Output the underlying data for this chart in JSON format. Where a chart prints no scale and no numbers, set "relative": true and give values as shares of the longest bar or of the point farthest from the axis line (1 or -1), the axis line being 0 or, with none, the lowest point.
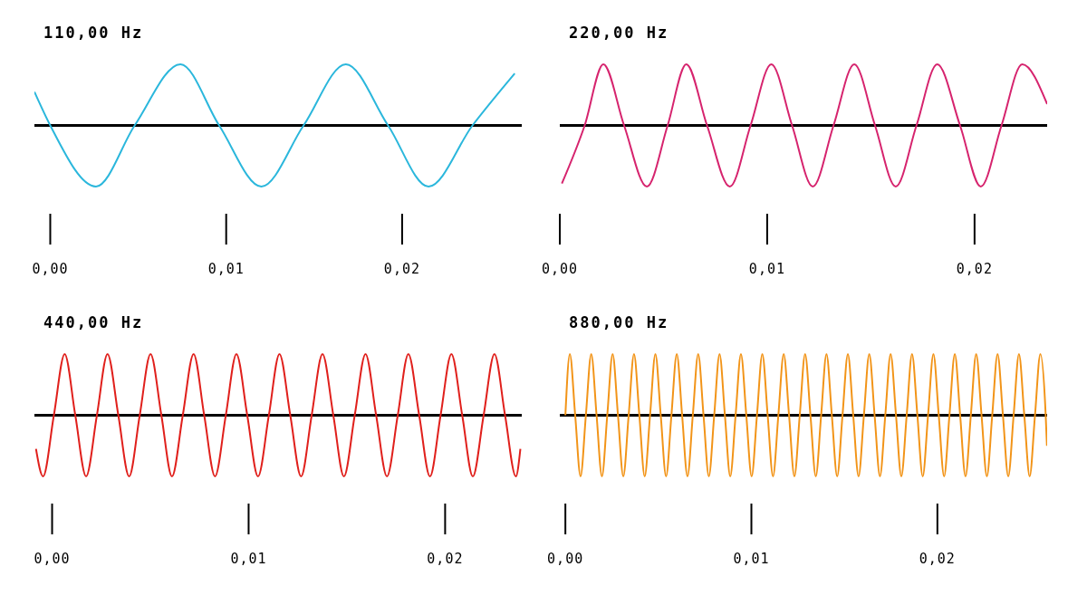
{
  "chart_data": [
    {
      "type": "line",
      "title": "110,00 Hz",
      "relative": true,
      "color": "#2bb7dc",
      "xlim": [
        -0.0009,
        0.0268
      ],
      "xticks": [
        {
          "value": 0,
          "label": "0,00"
        },
        {
          "value": 0.01,
          "label": "0,01"
        },
        {
          "value": 0.02,
          "label": "0,02"
        }
      ],
      "x": [
        -0.0009,
        0,
        0.0026,
        0.0048,
        0.0074,
        0.0096,
        0.012,
        0.0144,
        0.0168,
        0.0192,
        0.0215,
        0.024,
        0.0264
      ],
      "values": [
        0.55,
        0,
        -1,
        0,
        1,
        0,
        -1,
        0,
        1,
        0,
        -1,
        0,
        0.85
      ]
    },
    {
      "type": "line",
      "title": "220,00 Hz",
      "relative": true,
      "color": "#d6246e",
      "xlim": [
        0,
        0.0235
      ],
      "xticks": [
        {
          "value": 0,
          "label": "0,00"
        },
        {
          "value": 0.01,
          "label": "0,01"
        },
        {
          "value": 0.02,
          "label": "0,02"
        }
      ],
      "x": [
        0.0001,
        0.0012,
        0.0021,
        0.0031,
        0.0042,
        0.0052,
        0.0061,
        0.0071,
        0.0082,
        0.0092,
        0.0102,
        0.0112,
        0.0122,
        0.0132,
        0.0142,
        0.0152,
        0.0162,
        0.0172,
        0.0182,
        0.0193,
        0.0203,
        0.0213,
        0.0223,
        0.0235
      ],
      "values": [
        -0.95,
        0,
        1,
        0,
        -1,
        0,
        1,
        0,
        -1,
        0,
        1,
        0,
        -1,
        0,
        1,
        0,
        -1,
        0,
        1,
        0,
        -1,
        0,
        1,
        0.35
      ]
    },
    {
      "type": "line",
      "title": "440,00 Hz",
      "relative": true,
      "color": "#e0201c",
      "xlim": [
        -0.0009,
        0.0239
      ],
      "xticks": [
        {
          "value": 0,
          "label": "0,00"
        },
        {
          "value": 0.01,
          "label": "0,01"
        },
        {
          "value": 0.02,
          "label": "0,02"
        }
      ],
      "x": [
        -0.00082,
        -0.00046,
        9e-05,
        0.00064,
        0.00118,
        0.00173,
        0.00228,
        0.00282,
        0.00337,
        0.00392,
        0.00446,
        0.00501,
        0.00556,
        0.0061,
        0.00665,
        0.0072,
        0.00774,
        0.00829,
        0.00884,
        0.00938,
        0.00993,
        0.01048,
        0.01103,
        0.01157,
        0.01212,
        0.01267,
        0.01321,
        0.01376,
        0.01431,
        0.01485,
        0.0154,
        0.01595,
        0.01649,
        0.01704,
        0.01759,
        0.01813,
        0.01868,
        0.01923,
        0.01977,
        0.02032,
        0.02087,
        0.02141,
        0.02196,
        0.02251,
        0.02305,
        0.0236,
        0.02383
      ],
      "values": [
        -0.55,
        -1,
        0,
        1,
        0,
        -1,
        0,
        1,
        0,
        -1,
        0,
        1,
        0,
        -1,
        0,
        1,
        0,
        -1,
        0,
        1,
        0,
        -1,
        0,
        1,
        0,
        -1,
        0,
        1,
        0,
        -1,
        0,
        1,
        0,
        -1,
        0,
        1,
        0,
        -1,
        0,
        1,
        0,
        -1,
        0,
        1,
        0,
        -1,
        -0.55
      ]
    },
    {
      "type": "line",
      "title": "880,00 Hz",
      "relative": true,
      "color": "#f29418",
      "xlim": [
        -0.0003,
        0.0259
      ],
      "xticks": [
        {
          "value": 0,
          "label": "0,00"
        },
        {
          "value": 0.01,
          "label": "0,01"
        },
        {
          "value": 0.02,
          "label": "0,02"
        }
      ],
      "x": [
        0,
        0.00024,
        0.000527,
        0.000815,
        0.001102,
        0.00139,
        0.001677,
        0.001965,
        0.002252,
        0.00254,
        0.002827,
        0.003114,
        0.003402,
        0.003689,
        0.003977,
        0.004264,
        0.004552,
        0.004839,
        0.005126,
        0.005414,
        0.005701,
        0.005989,
        0.006276,
        0.006564,
        0.006851,
        0.007139,
        0.007426,
        0.007713,
        0.008001,
        0.008288,
        0.008576,
        0.008863,
        0.009151,
        0.009438,
        0.009726,
        0.010013,
        0.0103,
        0.010588,
        0.010875,
        0.011163,
        0.01145,
        0.011738,
        0.012025,
        0.012312,
        0.0126,
        0.012887,
        0.013175,
        0.013462,
        0.01375,
        0.014037,
        0.014325,
        0.014612,
        0.014899,
        0.015187,
        0.015474,
        0.015762,
        0.016049,
        0.016337,
        0.016624,
        0.016912,
        0.017199,
        0.017486,
        0.017774,
        0.018061,
        0.018349,
        0.018636,
        0.018924,
        0.019211,
        0.019498,
        0.019786,
        0.020073,
        0.020361,
        0.020648,
        0.020936,
        0.021223,
        0.021511,
        0.021798,
        0.022085,
        0.022373,
        0.02266,
        0.022948,
        0.023235,
        0.023523,
        0.02381,
        0.024098,
        0.024385,
        0.024672,
        0.02496,
        0.025247,
        0.025535,
        0.025822,
        0.02589
      ],
      "values": [
        0,
        1,
        0,
        -1,
        0,
        1,
        0,
        -1,
        0,
        1,
        0,
        -1,
        0,
        1,
        0,
        -1,
        0,
        1,
        0,
        -1,
        0,
        1,
        0,
        -1,
        0,
        1,
        0,
        -1,
        0,
        1,
        0,
        -1,
        0,
        1,
        0,
        -1,
        0,
        1,
        0,
        -1,
        0,
        1,
        0,
        -1,
        0,
        1,
        0,
        -1,
        0,
        1,
        0,
        -1,
        0,
        1,
        0,
        -1,
        0,
        1,
        0,
        -1,
        0,
        1,
        0,
        -1,
        0,
        1,
        0,
        -1,
        0,
        1,
        0,
        -1,
        0,
        1,
        0,
        -1,
        0,
        1,
        0,
        -1,
        0,
        1,
        0,
        -1,
        0,
        1,
        0,
        -1,
        0,
        1,
        0,
        -0.5
      ]
    }
  ]
}
